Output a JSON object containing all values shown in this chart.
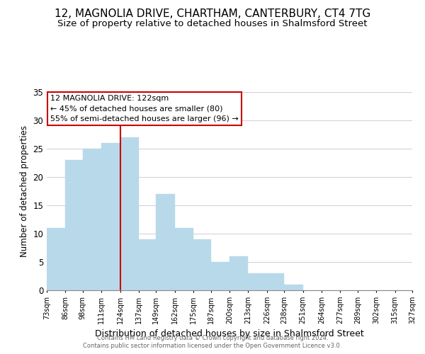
{
  "title": "12, MAGNOLIA DRIVE, CHARTHAM, CANTERBURY, CT4 7TG",
  "subtitle": "Size of property relative to detached houses in Shalmsford Street",
  "xlabel": "Distribution of detached houses by size in Shalmsford Street",
  "ylabel": "Number of detached properties",
  "bar_edges": [
    73,
    86,
    98,
    111,
    124,
    137,
    149,
    162,
    175,
    187,
    200,
    213,
    226,
    238,
    251,
    264,
    277,
    289,
    302,
    315,
    327
  ],
  "bar_heights": [
    11,
    23,
    25,
    26,
    27,
    9,
    17,
    11,
    9,
    5,
    6,
    3,
    3,
    1,
    0,
    0,
    0,
    0,
    0,
    0
  ],
  "bar_color": "#b8d9ea",
  "bar_edgecolor": "#b8d9ea",
  "reference_line_x": 124,
  "reference_line_color": "#cc0000",
  "ylim": [
    0,
    35
  ],
  "yticks": [
    0,
    5,
    10,
    15,
    20,
    25,
    30,
    35
  ],
  "grid_color": "#d0d0d0",
  "annotation_title": "12 MAGNOLIA DRIVE: 122sqm",
  "annotation_line1": "← 45% of detached houses are smaller (80)",
  "annotation_line2": "55% of semi-detached houses are larger (96) →",
  "annotation_box_color": "#ffffff",
  "annotation_box_edgecolor": "#cc0000",
  "footer1": "Contains HM Land Registry data © Crown copyright and database right 2024.",
  "footer2": "Contains public sector information licensed under the Open Government Licence v3.0.",
  "tick_labels": [
    "73sqm",
    "86sqm",
    "98sqm",
    "111sqm",
    "124sqm",
    "137sqm",
    "149sqm",
    "162sqm",
    "175sqm",
    "187sqm",
    "200sqm",
    "213sqm",
    "226sqm",
    "238sqm",
    "251sqm",
    "264sqm",
    "277sqm",
    "289sqm",
    "302sqm",
    "315sqm",
    "327sqm"
  ],
  "background_color": "#ffffff",
  "title_fontsize": 11,
  "subtitle_fontsize": 9.5,
  "annotation_fontsize": 8,
  "ylabel_fontsize": 8.5,
  "xlabel_fontsize": 9,
  "footer_fontsize": 6,
  "tick_fontsize": 7
}
